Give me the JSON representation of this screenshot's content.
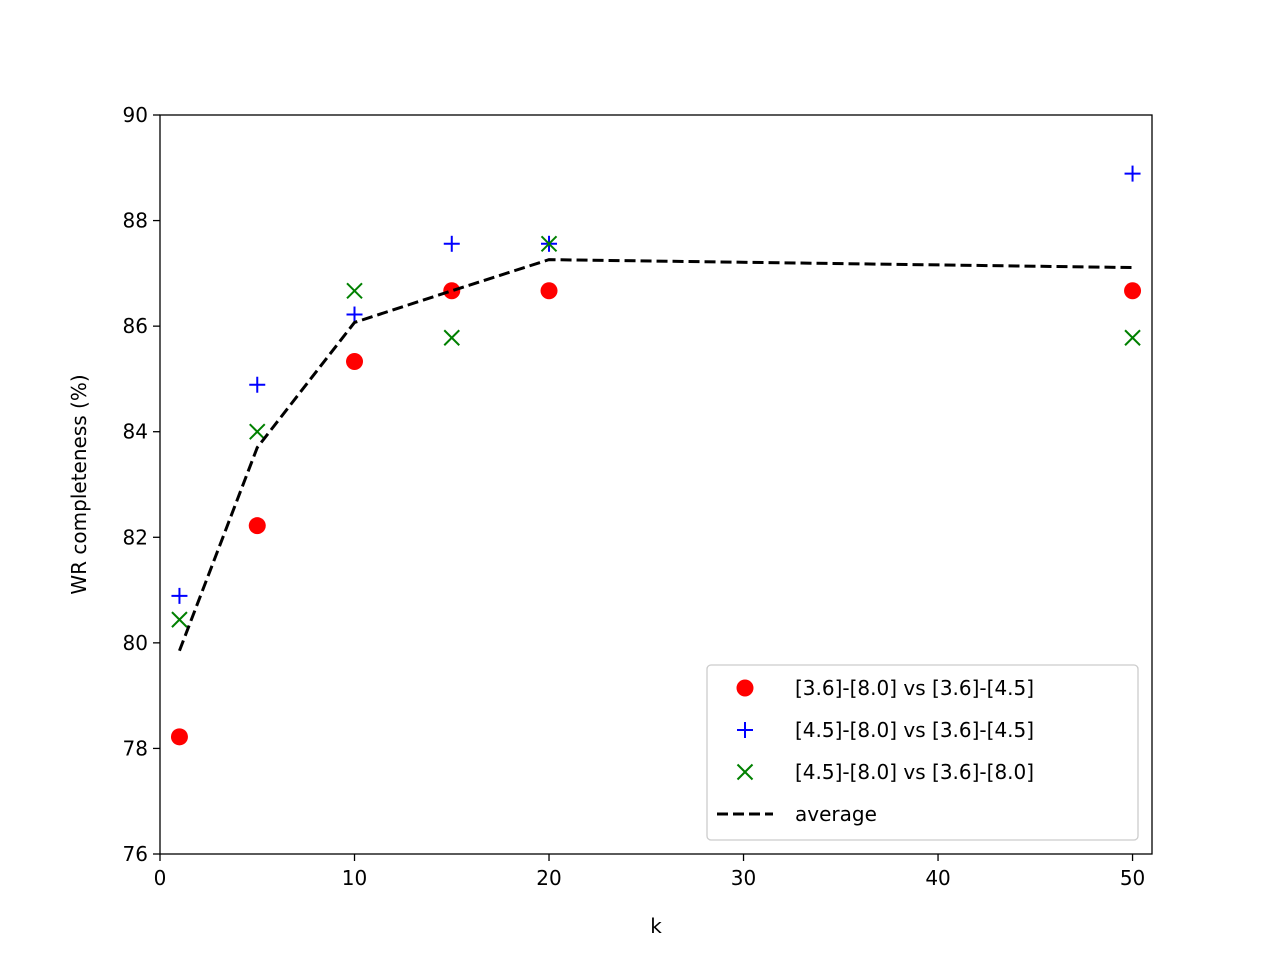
{
  "chart_data": {
    "type": "scatter",
    "title": "",
    "xlabel": "k",
    "ylabel": "WR completeness (%)",
    "xlim": [
      0,
      51
    ],
    "ylim": [
      76,
      90
    ],
    "xticks": [
      0,
      10,
      20,
      30,
      40,
      50
    ],
    "yticks": [
      76,
      78,
      80,
      82,
      84,
      86,
      88,
      90
    ],
    "grid": false,
    "legend_position": "bottom-right",
    "x": [
      1,
      5,
      10,
      15,
      20,
      50
    ],
    "series": [
      {
        "name": "[3.6]-[8.0] vs [3.6]-[4.5]",
        "marker": "circle",
        "color": "#ff0000",
        "values": [
          78.22,
          82.22,
          85.33,
          86.67,
          86.67,
          86.67
        ]
      },
      {
        "name": "[4.5]-[8.0] vs [3.6]-[4.5]",
        "marker": "plus",
        "color": "#0000ff",
        "values": [
          80.89,
          84.89,
          86.22,
          87.56,
          87.56,
          88.89
        ]
      },
      {
        "name": "[4.5]-[8.0] vs [3.6]-[8.0]",
        "marker": "x",
        "color": "#008000",
        "values": [
          80.44,
          84.0,
          86.67,
          85.78,
          87.56,
          85.78
        ]
      },
      {
        "name": "average",
        "marker": "dashed-line",
        "color": "#000000",
        "values": [
          79.85,
          83.7,
          86.07,
          86.67,
          87.26,
          87.11
        ]
      }
    ]
  }
}
